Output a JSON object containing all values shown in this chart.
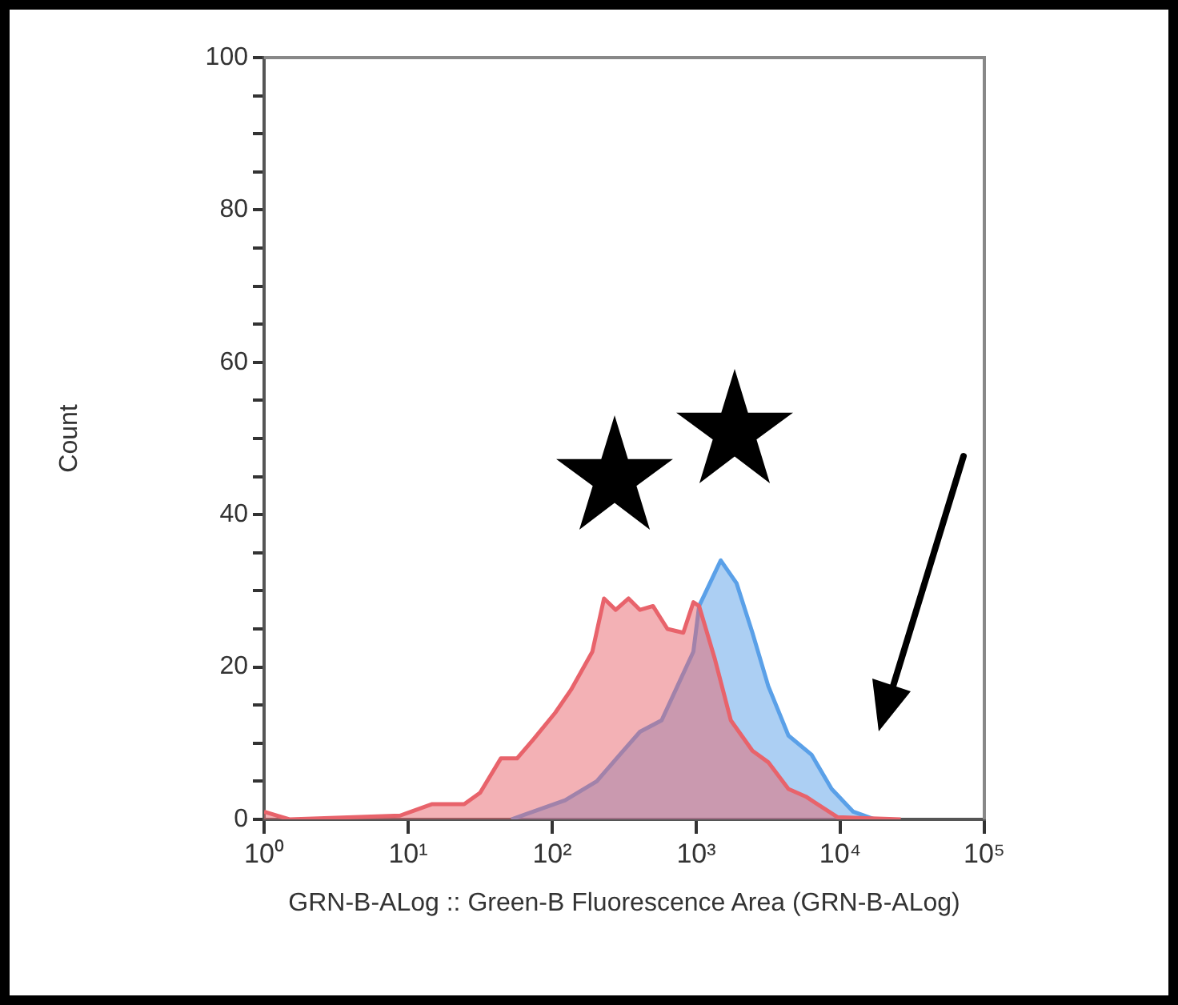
{
  "chart_data": {
    "type": "area",
    "xlabel": "GRN-B-ALog :: Green-B Fluorescence Area (GRN-B-ALog)",
    "ylabel": "Count",
    "log": "x",
    "series": [
      {
        "color": "#e8636b",
        "x": [
          1,
          1.5,
          8.8,
          14.7,
          24.5,
          31.6,
          44,
          57,
          74,
          105,
          135,
          190,
          229,
          276,
          339,
          407,
          501,
          631,
          813,
          955,
          1047,
          1349,
          1738,
          2455,
          3162,
          4365,
          5754,
          9550,
          26300
        ],
        "values": [
          1,
          0,
          0.5,
          2,
          2,
          3.5,
          8,
          8,
          10.5,
          14,
          17,
          22,
          29,
          27.5,
          29,
          27.5,
          28,
          25,
          24.5,
          28.5,
          28,
          21,
          13,
          9,
          7.5,
          4,
          3,
          0.3,
          0
        ]
      },
      {
        "color": "#5aa0e8",
        "x": [
          52,
          123,
          204,
          295,
          407,
          575,
          741,
          955,
          1047,
          1479,
          1905,
          2455,
          3162,
          4365,
          6310,
          8710,
          12300,
          17400
        ],
        "values": [
          0,
          2.5,
          5,
          8.5,
          11.5,
          13,
          17.5,
          22,
          28,
          34,
          31,
          24.5,
          17.5,
          11,
          8.5,
          4,
          1,
          0
        ]
      }
    ],
    "xlim": [
      1,
      100000
    ],
    "xticks": [
      {
        "value": 1,
        "label": "10⁰"
      },
      {
        "value": 10,
        "label": "10¹"
      },
      {
        "value": 100,
        "label": "10²"
      },
      {
        "value": 1000,
        "label": "10³"
      },
      {
        "value": 10000,
        "label": "10⁴"
      },
      {
        "value": 100000,
        "label": "10⁵"
      }
    ],
    "ylim": [
      0,
      100
    ],
    "yticks": [
      0,
      {
        "value": 5,
        "label": null
      },
      {
        "value": 10,
        "label": null
      },
      {
        "value": 15,
        "label": null
      },
      20,
      {
        "value": 25,
        "label": null
      },
      {
        "value": 30,
        "label": null
      },
      {
        "value": 35,
        "label": null
      },
      40,
      {
        "value": 45,
        "label": null
      },
      {
        "value": 50,
        "label": null
      },
      {
        "value": 55,
        "label": null
      },
      60,
      {
        "value": 65,
        "label": null
      },
      {
        "value": 70,
        "label": null
      },
      {
        "value": 75,
        "label": null
      },
      80,
      {
        "value": 85,
        "label": null
      },
      {
        "value": 90,
        "label": null
      },
      {
        "value": 95,
        "label": null
      },
      100
    ],
    "grid": false
  }
}
